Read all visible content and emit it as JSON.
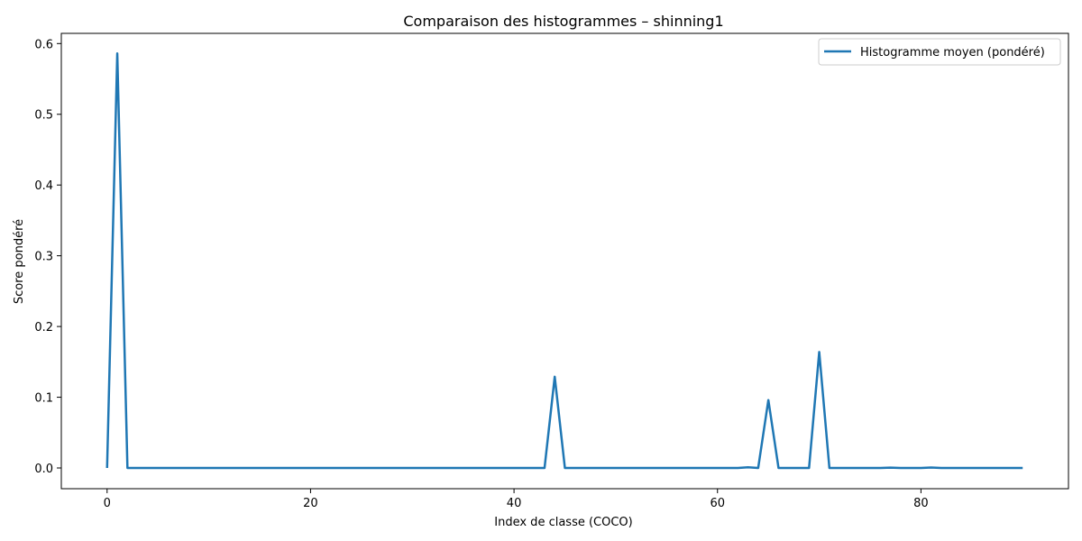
{
  "chart_data": {
    "type": "line",
    "title": "Comparaison des histogrammes – shinning1",
    "xlabel": "Index de classe (COCO)",
    "ylabel": "Score pondéré",
    "xlim": [
      -4.5,
      94.5
    ],
    "ylim": [
      -0.0293,
      0.6144
    ],
    "xticks": [
      0,
      20,
      40,
      60,
      80
    ],
    "yticks": [
      0.0,
      0.1,
      0.2,
      0.3,
      0.4,
      0.5,
      0.6
    ],
    "xtick_labels": [
      "0",
      "20",
      "40",
      "60",
      "80"
    ],
    "ytick_labels": [
      "0.0",
      "0.1",
      "0.2",
      "0.3",
      "0.4",
      "0.5",
      "0.6"
    ],
    "grid": false,
    "legend_position": "top-right",
    "series": [
      {
        "name": "Histogramme moyen (pondéré)",
        "color": "#1f77b4",
        "x": [
          0,
          1,
          2,
          3,
          4,
          5,
          6,
          7,
          8,
          9,
          10,
          11,
          12,
          13,
          14,
          15,
          16,
          17,
          18,
          19,
          20,
          21,
          22,
          23,
          24,
          25,
          26,
          27,
          28,
          29,
          30,
          31,
          32,
          33,
          34,
          35,
          36,
          37,
          38,
          39,
          40,
          41,
          42,
          43,
          44,
          45,
          46,
          47,
          48,
          49,
          50,
          51,
          52,
          53,
          54,
          55,
          56,
          57,
          58,
          59,
          60,
          61,
          62,
          63,
          64,
          65,
          66,
          67,
          68,
          69,
          70,
          71,
          72,
          73,
          74,
          75,
          76,
          77,
          78,
          79,
          80,
          81,
          82,
          83,
          84,
          85,
          86,
          87,
          88,
          89,
          90
        ],
        "values": [
          0,
          0.586,
          0,
          0,
          0,
          0,
          0,
          0,
          0,
          0,
          0,
          0,
          0,
          0,
          0,
          0,
          0,
          0,
          0,
          0,
          0,
          0,
          0,
          0,
          0,
          0,
          0,
          0,
          0,
          0,
          0,
          0,
          0,
          0,
          0,
          0,
          0,
          0,
          0,
          0,
          0,
          0,
          0,
          0,
          0.129,
          0,
          0,
          0,
          0,
          0,
          0,
          0,
          0,
          0,
          0,
          0,
          0,
          0,
          0,
          0,
          0,
          0,
          0,
          0.001,
          0,
          0.096,
          0,
          0,
          0,
          0,
          0.164,
          0,
          0,
          0,
          0,
          0,
          0,
          0.0005,
          0,
          0,
          0,
          0.0007,
          0,
          0,
          0,
          0,
          0,
          0,
          0,
          0,
          0
        ]
      }
    ]
  }
}
